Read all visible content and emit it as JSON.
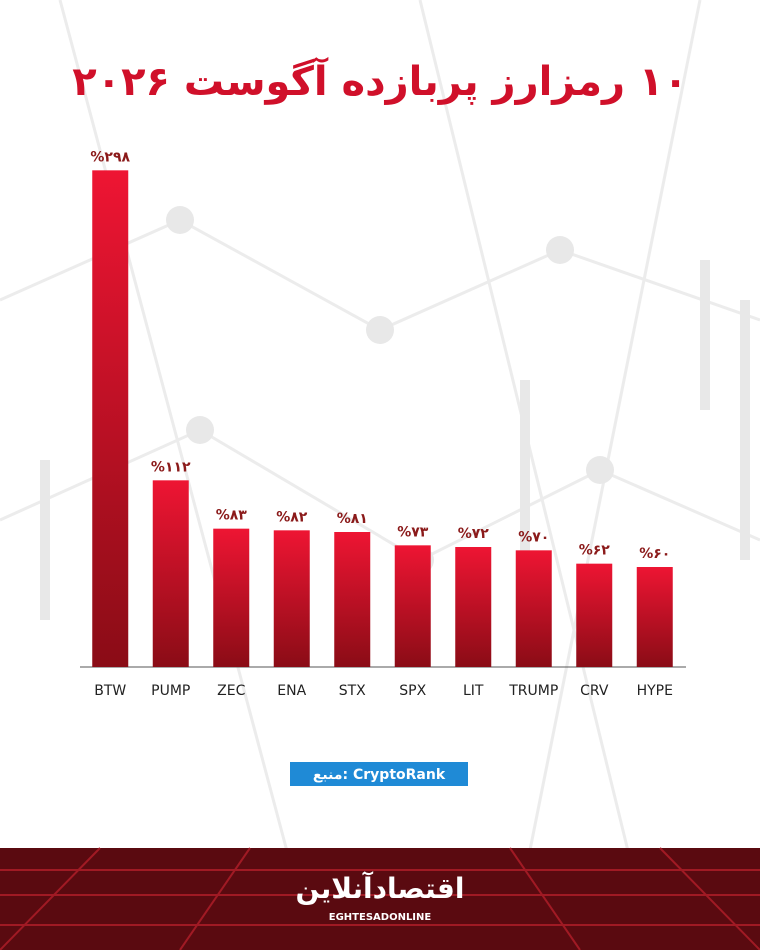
{
  "chart_data": {
    "type": "bar",
    "title": "۱۰ رمزارز پربازده آگوست ۲۰۲۶",
    "categories": [
      "BTW",
      "PUMP",
      "ZEC",
      "ENA",
      "STX",
      "SPX",
      "LIT",
      "TRUMP",
      "CRV",
      "HYPE"
    ],
    "values": [
      298,
      112,
      83,
      82,
      81,
      73,
      72,
      70,
      62,
      60
    ],
    "value_labels": [
      "%۲۹۸",
      "%۱۱۲",
      "%۸۳",
      "%۸۲",
      "%۸۱",
      "%۷۳",
      "%۷۲",
      "%۷۰",
      "%۶۲",
      "%۶۰"
    ],
    "color": "#c8102e",
    "ylim": [
      0,
      300
    ],
    "source": "منبع: CryptoRank",
    "brand": "اقتصادآنلاین",
    "brand_latin": "EGHTESADONLINE"
  }
}
